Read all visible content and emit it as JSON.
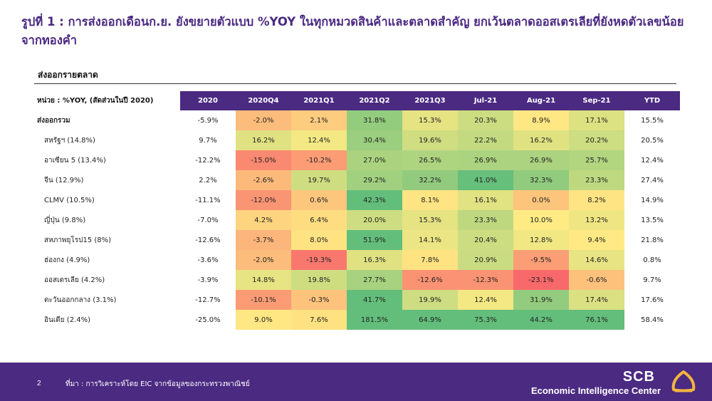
{
  "title": "รูปที่ 1 : การส่งออกเดือนก.ย. ยังขยายตัวแบบ %YOY ในทุกหมวดสินค้าและตลาดสำคัญ ยกเว้นตลาดออสเตรเลียที่ยังหดตัวเลขน้อยจากทองคำ",
  "section_title": "ส่งออกรายตลาด",
  "table": {
    "corner": "หน่วย : %YOY, (สัดส่วนในปี 2020)",
    "columns": [
      "2020",
      "2020Q4",
      "2021Q1",
      "2021Q2",
      "2021Q3",
      "Jul-21",
      "Aug-21",
      "Sep-21",
      "YTD"
    ],
    "rows": [
      {
        "label": "ส่งออกรวม",
        "values": [
          "-5.9%",
          "-2.0%",
          "2.1%",
          "31.8%",
          "15.3%",
          "20.3%",
          "8.9%",
          "17.1%",
          "15.5%"
        ]
      },
      {
        "label": "สหรัฐฯ (14.8%)",
        "values": [
          "9.7%",
          "16.2%",
          "12.4%",
          "30.4%",
          "19.6%",
          "22.2%",
          "16.2%",
          "20.2%",
          "20.5%"
        ]
      },
      {
        "label": "อาเซียน 5 (13.4%)",
        "values": [
          "-12.2%",
          "-15.0%",
          "-10.2%",
          "27.0%",
          "26.5%",
          "26.9%",
          "26.9%",
          "25.7%",
          "12.4%"
        ]
      },
      {
        "label": "จีน (12.9%)",
        "values": [
          "2.2%",
          "-2.6%",
          "19.7%",
          "29.2%",
          "32.2%",
          "41.0%",
          "32.3%",
          "23.3%",
          "27.4%"
        ]
      },
      {
        "label": "CLMV (10.5%)",
        "values": [
          "-11.1%",
          "-12.0%",
          "0.6%",
          "42.3%",
          "8.1%",
          "16.1%",
          "0.0%",
          "8.2%",
          "14.9%"
        ]
      },
      {
        "label": "ญี่ปุ่น (9.8%)",
        "values": [
          "-7.0%",
          "4.2%",
          "6.4%",
          "20.0%",
          "15.3%",
          "23.3%",
          "10.0%",
          "13.2%",
          "13.5%"
        ]
      },
      {
        "label": "สหภาพยุโรป15 (8%)",
        "values": [
          "-12.6%",
          "-3.7%",
          "8.0%",
          "51.9%",
          "14.1%",
          "20.4%",
          "12.8%",
          "9.4%",
          "21.8%"
        ]
      },
      {
        "label": "ฮ่องกง (4.9%)",
        "values": [
          "-3.6%",
          "-2.0%",
          "-19.3%",
          "16.3%",
          "7.8%",
          "20.9%",
          "-9.5%",
          "14.6%",
          "0.8%"
        ]
      },
      {
        "label": "ออสเตรเลีย (4.2%)",
        "values": [
          "-3.9%",
          "14.8%",
          "19.8%",
          "27.7%",
          "-12.6%",
          "-12.3%",
          "-23.1%",
          "-0.6%",
          "9.7%"
        ]
      },
      {
        "label": "ตะวันออกกลาง (3.1%)",
        "values": [
          "-12.7%",
          "-10.1%",
          "-0.3%",
          "41.7%",
          "19.9%",
          "12.4%",
          "31.9%",
          "17.4%",
          "17.6%"
        ]
      },
      {
        "label": "อินเดีย (2.4%)",
        "values": [
          "-25.0%",
          "9.0%",
          "7.6%",
          "181.5%",
          "64.9%",
          "75.3%",
          "44.2%",
          "76.1%",
          "58.4%"
        ]
      }
    ]
  },
  "colors": {
    "brand_purple": "#4b2a82",
    "heat_red": "#f8696b",
    "heat_yellow": "#ffeb84",
    "heat_green": "#63be7b"
  },
  "footer": {
    "page_number": "2",
    "source": "ที่มา : การวิเคราะห์โดย EIC จากข้อมูลของกระทรวงพาณิชย์",
    "brand": "SCB",
    "brand_subtitle": "Economic Intelligence Center",
    "logo_icon": "scb-lotus-logo-icon"
  }
}
